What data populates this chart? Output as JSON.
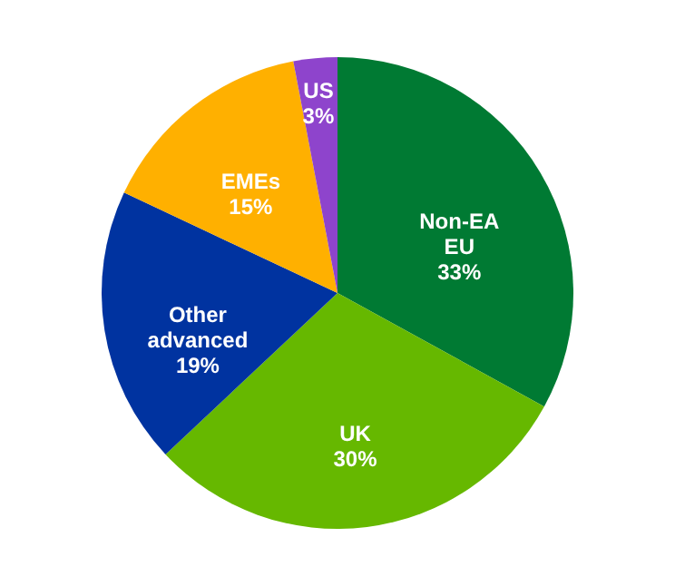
{
  "chart_data": {
    "type": "pie",
    "categories": [
      "Non-EA EU",
      "UK",
      "Other advanced",
      "EMEs",
      "US"
    ],
    "values": [
      33,
      30,
      19,
      15,
      3
    ],
    "colors": [
      "#007a33",
      "#66b800",
      "#0033a0",
      "#ffb000",
      "#8e44cc"
    ],
    "value_labels": [
      "33%",
      "30%",
      "19%",
      "15%",
      "3%"
    ]
  }
}
